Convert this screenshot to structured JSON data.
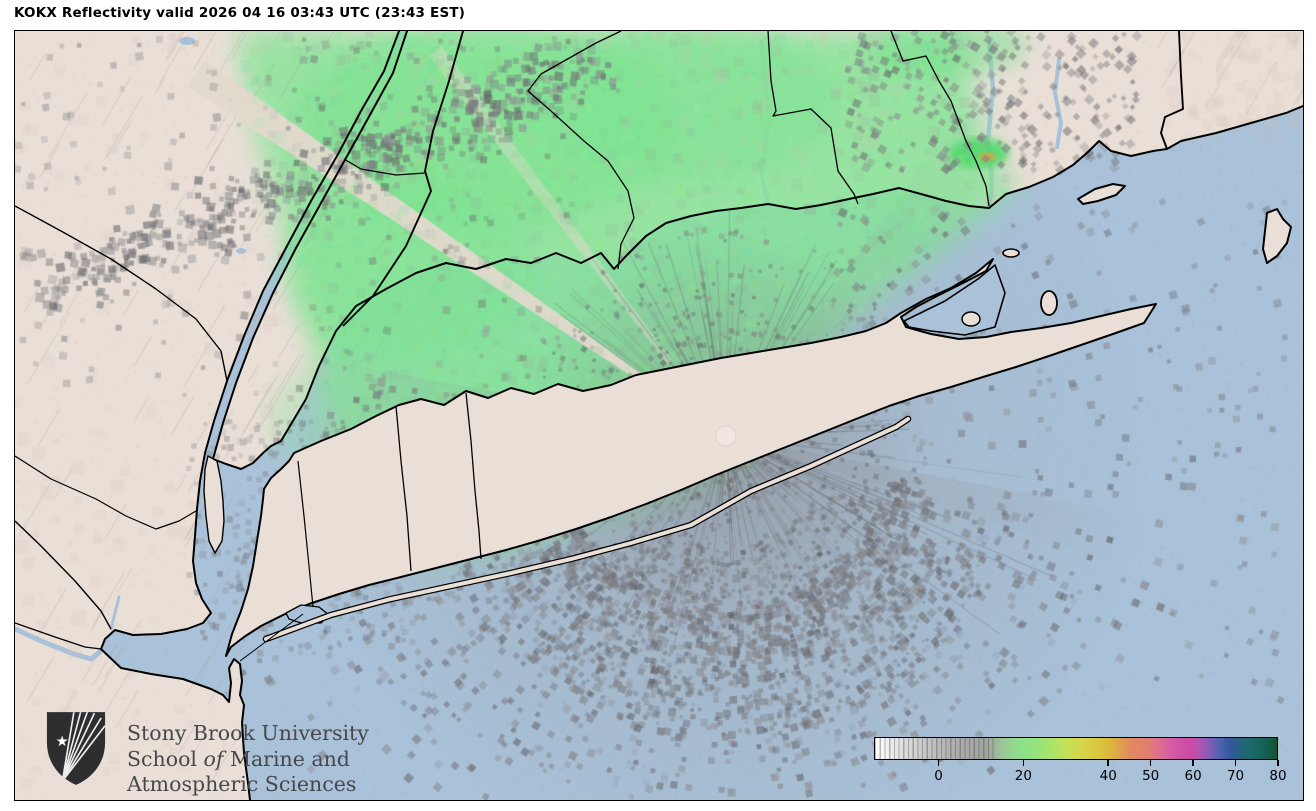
{
  "header": {
    "title": "KOKX Reflectivity valid 2026 04 16 03:43 UTC (23:43 EST)"
  },
  "logo": {
    "line1": "Stony Brook University",
    "line2_pre": "School ",
    "line2_italic": "of",
    "line2_post": " Marine and",
    "line3": "Atmospheric Sciences"
  },
  "colorbar": {
    "tick_values": [
      0,
      20,
      40,
      50,
      60,
      70,
      80
    ],
    "axis_min": -15.2,
    "axis_max": 80
  },
  "colors": {
    "land": "#e9dfd7",
    "water": "#a9c2d9",
    "precip_green": "#82e595",
    "precip_bright_green": "#4ed968",
    "precip_orange": "#e2a23c",
    "clutter_gray": "#8e8e92",
    "boundary": "#000000",
    "radar_center_dot": "#f1e7e0",
    "logo_shield": "#2e2e31",
    "logo_text": "#48484c"
  },
  "chart_data": {
    "type": "heatmap",
    "title": "KOKX Reflectivity valid 2026 04 16 03:43 UTC (23:43 EST)",
    "legend_position": "bottom-right",
    "colorbar_ticks": [
      0,
      20,
      40,
      50,
      60,
      70,
      80
    ],
    "colorbar_range": [
      -15.2,
      80
    ],
    "colorbar_stops": [
      {
        "pos": 0.0,
        "color": "#ffffff"
      },
      {
        "pos": 0.18,
        "color": "#b2b2b2"
      },
      {
        "pos": 0.36,
        "color": "#8ce08a"
      },
      {
        "pos": 0.52,
        "color": "#d8d348"
      },
      {
        "pos": 0.66,
        "color": "#e2836a"
      },
      {
        "pos": 0.76,
        "color": "#d152a6"
      },
      {
        "pos": 0.825,
        "color": "#9159b7"
      },
      {
        "pos": 0.875,
        "color": "#35599f"
      },
      {
        "pos": 0.94,
        "color": "#1d6a68"
      },
      {
        "pos": 1.0,
        "color": "#14532d"
      }
    ]
  }
}
